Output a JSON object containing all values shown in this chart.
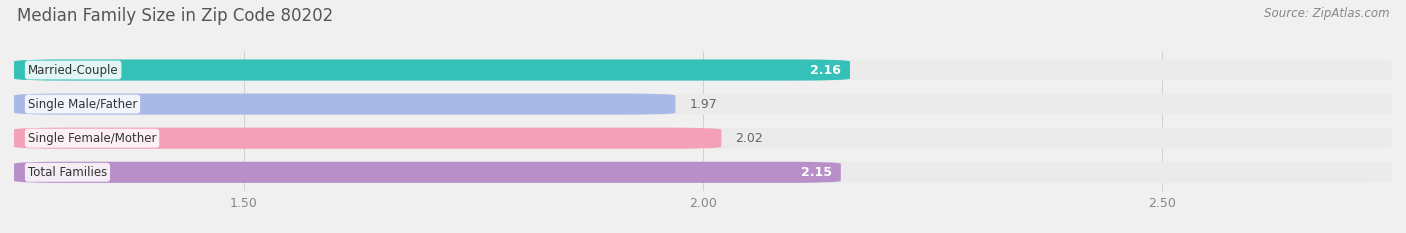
{
  "title": "Median Family Size in Zip Code 80202",
  "source": "Source: ZipAtlas.com",
  "categories": [
    "Married-Couple",
    "Single Male/Father",
    "Single Female/Mother",
    "Total Families"
  ],
  "values": [
    2.16,
    1.97,
    2.02,
    2.15
  ],
  "bar_colors": [
    "#35c0b8",
    "#aab8e8",
    "#f4a0b8",
    "#b88fc8"
  ],
  "bar_bg_colors": [
    "#ebebeb",
    "#ebebeb",
    "#ebebeb",
    "#ebebeb"
  ],
  "value_inside": [
    true,
    false,
    false,
    true
  ],
  "value_colors_inside": [
    "#ffffff",
    "#666666",
    "#666666",
    "#ffffff"
  ],
  "xlim_data": [
    1.25,
    2.75
  ],
  "xaxis_min": 1.25,
  "xaxis_max": 2.75,
  "xticks": [
    1.5,
    2.0,
    2.5
  ],
  "bar_height": 0.62,
  "bar_gap": 0.18,
  "figsize": [
    14.06,
    2.33
  ],
  "dpi": 100,
  "title_fontsize": 12,
  "source_fontsize": 8.5,
  "label_fontsize": 8.5,
  "value_fontsize": 9,
  "tick_fontsize": 9,
  "background_color": "#f0f0f0"
}
